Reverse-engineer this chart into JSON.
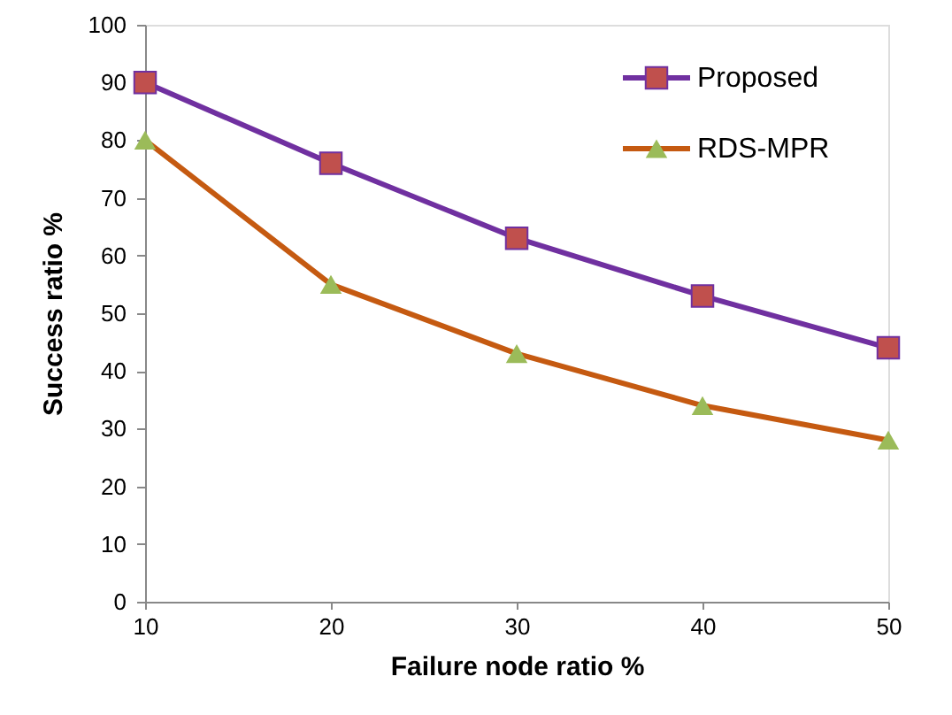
{
  "chart_data": {
    "type": "line",
    "xlabel": "Failure node ratio %",
    "ylabel": "Success ratio %",
    "x": [
      10,
      20,
      30,
      40,
      50
    ],
    "xlim": [
      10,
      50
    ],
    "xticks": [
      10,
      20,
      30,
      40,
      50
    ],
    "ylim": [
      0,
      100
    ],
    "yticks": [
      0,
      10,
      20,
      30,
      40,
      50,
      60,
      70,
      80,
      90,
      100
    ],
    "grid": false,
    "legend": "top right",
    "line_style": "solid",
    "series": [
      {
        "name": "Proposed",
        "color": "#7030a0",
        "marker": "square",
        "colors": [
          "#c0504d",
          "#c0504d",
          "#c0504d",
          "#c0504d",
          "#c0504d"
        ],
        "values": [
          90,
          76,
          63,
          53,
          44
        ]
      },
      {
        "name": "RDS-MPR",
        "color": "#c55a11",
        "marker": "triangle",
        "colors": [
          "#9bbb59",
          "#9bbb59",
          "#9bbb59",
          "#9bbb59",
          "#9bbb59"
        ],
        "values": [
          80,
          55,
          43,
          34,
          28
        ]
      }
    ]
  }
}
